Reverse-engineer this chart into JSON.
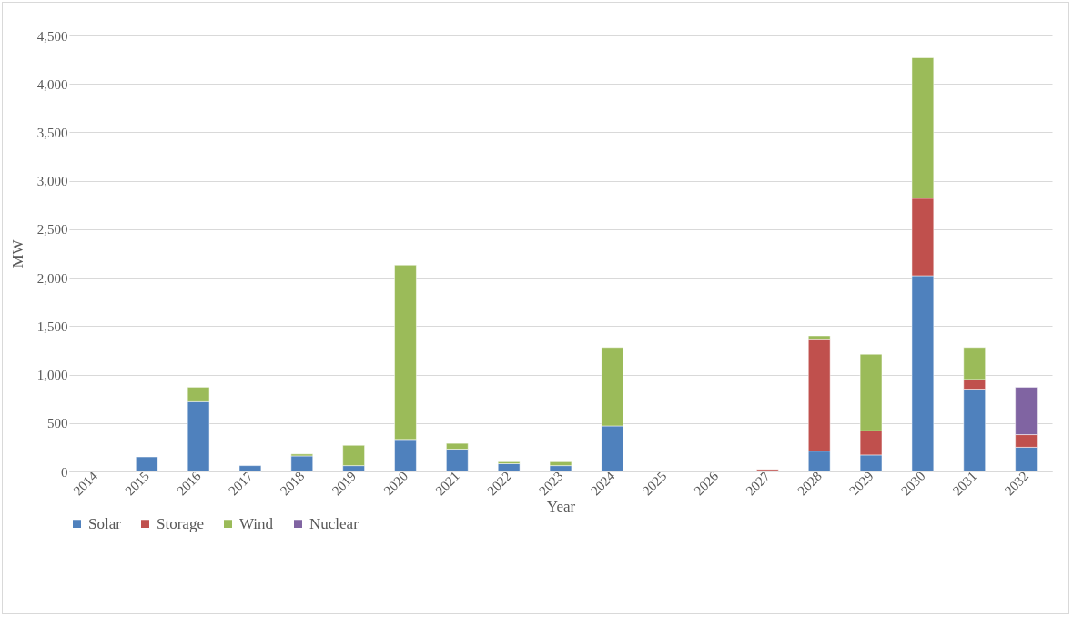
{
  "chart_data": {
    "type": "bar",
    "stacked": true,
    "xlabel": "Year",
    "ylabel": "MW",
    "categories": [
      "2014",
      "2015",
      "2016",
      "2017",
      "2018",
      "2019",
      "2020",
      "2021",
      "2022",
      "2023",
      "2024",
      "2025",
      "2026",
      "2027",
      "2028",
      "2029",
      "2030",
      "2031",
      "2032"
    ],
    "series": [
      {
        "name": "Solar",
        "color": "#4f81bd",
        "values": [
          null,
          150,
          720,
          60,
          160,
          60,
          330,
          230,
          80,
          60,
          470,
          null,
          null,
          null,
          210,
          170,
          2020,
          850,
          250
        ]
      },
      {
        "name": "Storage",
        "color": "#c0504d",
        "values": [
          null,
          null,
          null,
          null,
          null,
          null,
          null,
          null,
          null,
          null,
          null,
          null,
          null,
          20,
          1150,
          250,
          800,
          100,
          130
        ]
      },
      {
        "name": "Wind",
        "color": "#9bbb59",
        "values": [
          null,
          null,
          150,
          null,
          20,
          210,
          1800,
          60,
          20,
          40,
          810,
          null,
          null,
          null,
          40,
          790,
          1450,
          330,
          null
        ]
      },
      {
        "name": "Nuclear",
        "color": "#8064a2",
        "values": [
          null,
          null,
          null,
          null,
          null,
          null,
          null,
          null,
          null,
          null,
          null,
          null,
          null,
          null,
          null,
          null,
          null,
          null,
          490
        ]
      }
    ],
    "ylim": [
      0,
      4500
    ],
    "yticks": [
      0,
      500,
      {
        "value": 1000,
        "label": "1,000"
      },
      {
        "value": 1500,
        "label": "1,500"
      },
      {
        "value": 2000,
        "label": "2,000"
      },
      {
        "value": 2500,
        "label": "2,500"
      },
      {
        "value": 3000,
        "label": "3,000"
      },
      {
        "value": 3500,
        "label": "3,500"
      },
      {
        "value": 4000,
        "label": "4,000"
      },
      {
        "value": 4500,
        "label": "4,500"
      }
    ],
    "grid": "y",
    "legend": "bottom"
  }
}
